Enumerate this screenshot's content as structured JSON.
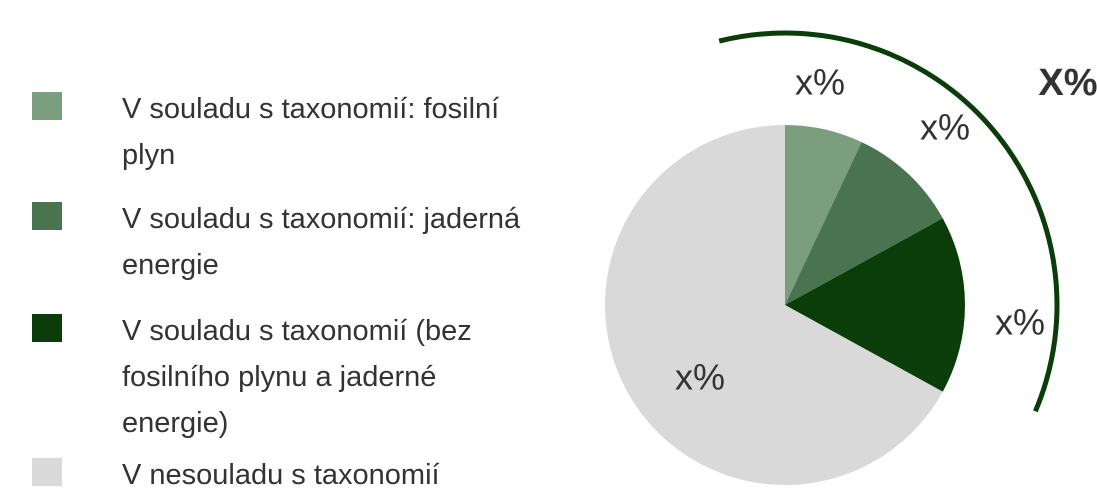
{
  "chart_data": {
    "type": "pie",
    "categories": [
      "V souladu s taxonomií: fosilní plyn",
      "V souladu s taxonomií: jaderná energie",
      "V souladu s taxonomií (bez fosilního plynu a jaderné energie)",
      "V nesouladu s taxonomií"
    ],
    "values": [
      7,
      10,
      16,
      67
    ],
    "value_labels": [
      "x%",
      "x%",
      "x%",
      "x%"
    ],
    "colors": [
      "#7a9e7e",
      "#4a7350",
      "#0b3d0b",
      "#d9d9d9"
    ],
    "annotation": "X%"
  }
}
